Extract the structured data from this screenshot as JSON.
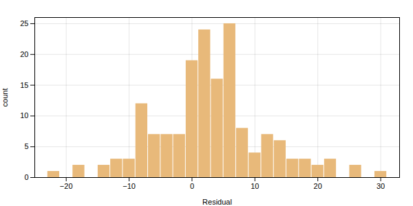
{
  "chart_data": {
    "type": "histogram",
    "bins": [
      -23,
      -21,
      -19,
      -17,
      -15,
      -13,
      -11,
      -9,
      -7,
      -5,
      -3,
      -1,
      1,
      3,
      5,
      7,
      9,
      11,
      13,
      15,
      17,
      19,
      21,
      23,
      25,
      27,
      29,
      31
    ],
    "values": [
      1,
      0,
      2,
      0,
      2,
      3,
      3,
      12,
      7,
      7,
      7,
      19,
      24,
      16,
      25,
      8,
      4,
      7,
      6,
      3,
      3,
      2,
      3,
      0,
      2,
      0,
      1
    ],
    "color": "#E8B97A",
    "xlabel": "Residual",
    "ylabel": "count",
    "xlim": [
      -25,
      33
    ],
    "ylim": [
      0,
      26
    ],
    "xticks": [
      -20,
      -10,
      0,
      10,
      20,
      30
    ],
    "yticks": [
      0,
      5,
      10,
      15,
      20,
      25
    ],
    "grid": true
  }
}
